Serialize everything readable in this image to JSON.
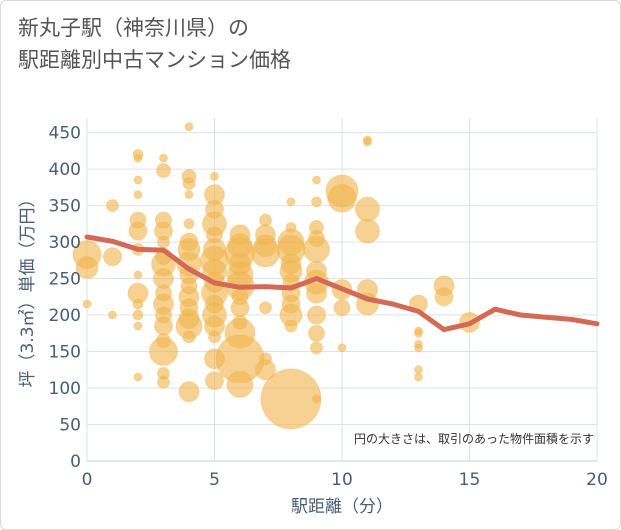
{
  "title_lines": [
    "新丸子駅（神奈川県）の",
    "駅距離別中古マンション価格"
  ],
  "chart_data": {
    "type": "scatter",
    "xlabel": "駅距離（分）",
    "ylabel": "坪（3.3㎡）単価（万円）",
    "xlim": [
      0,
      20
    ],
    "ylim": [
      0,
      470
    ],
    "x_ticks": [
      "0",
      "5",
      "10",
      "15",
      "20"
    ],
    "y_ticks": [
      "0",
      "50",
      "100",
      "150",
      "200",
      "250",
      "300",
      "350",
      "400",
      "450"
    ],
    "annotation": "円の大きさは、取引のあった物件面積を示す",
    "grid": true,
    "colors": {
      "bubble": "#f0b54d",
      "line": "#d46a56",
      "grid": "#dde3ea",
      "plot_bg": "#ffffff"
    },
    "bubbles": [
      {
        "x": 0,
        "y": 283,
        "s": 14
      },
      {
        "x": 0,
        "y": 265,
        "s": 11
      },
      {
        "x": 0,
        "y": 215,
        "s": 4
      },
      {
        "x": 1,
        "y": 350,
        "s": 6
      },
      {
        "x": 1,
        "y": 280,
        "s": 9
      },
      {
        "x": 1,
        "y": 200,
        "s": 4
      },
      {
        "x": 2,
        "y": 420,
        "s": 5
      },
      {
        "x": 2,
        "y": 415,
        "s": 4
      },
      {
        "x": 2,
        "y": 385,
        "s": 4
      },
      {
        "x": 2,
        "y": 365,
        "s": 4
      },
      {
        "x": 2,
        "y": 330,
        "s": 8
      },
      {
        "x": 2,
        "y": 315,
        "s": 9
      },
      {
        "x": 2,
        "y": 290,
        "s": 6
      },
      {
        "x": 2,
        "y": 255,
        "s": 4
      },
      {
        "x": 2,
        "y": 230,
        "s": 10
      },
      {
        "x": 2,
        "y": 215,
        "s": 5
      },
      {
        "x": 2,
        "y": 200,
        "s": 5
      },
      {
        "x": 2,
        "y": 185,
        "s": 4
      },
      {
        "x": 2,
        "y": 115,
        "s": 4
      },
      {
        "x": 3,
        "y": 415,
        "s": 4
      },
      {
        "x": 3,
        "y": 398,
        "s": 7
      },
      {
        "x": 3,
        "y": 330,
        "s": 8
      },
      {
        "x": 3,
        "y": 315,
        "s": 9
      },
      {
        "x": 3,
        "y": 300,
        "s": 6
      },
      {
        "x": 3,
        "y": 280,
        "s": 8
      },
      {
        "x": 3,
        "y": 270,
        "s": 12
      },
      {
        "x": 3,
        "y": 250,
        "s": 10
      },
      {
        "x": 3,
        "y": 230,
        "s": 8
      },
      {
        "x": 3,
        "y": 215,
        "s": 10
      },
      {
        "x": 3,
        "y": 200,
        "s": 8
      },
      {
        "x": 3,
        "y": 185,
        "s": 9
      },
      {
        "x": 3,
        "y": 165,
        "s": 7
      },
      {
        "x": 3,
        "y": 150,
        "s": 14
      },
      {
        "x": 3,
        "y": 120,
        "s": 6
      },
      {
        "x": 3,
        "y": 108,
        "s": 6
      },
      {
        "x": 4,
        "y": 458,
        "s": 4
      },
      {
        "x": 4,
        "y": 390,
        "s": 7
      },
      {
        "x": 4,
        "y": 380,
        "s": 6
      },
      {
        "x": 4,
        "y": 365,
        "s": 4
      },
      {
        "x": 4,
        "y": 325,
        "s": 5
      },
      {
        "x": 4,
        "y": 300,
        "s": 9
      },
      {
        "x": 4,
        "y": 290,
        "s": 11
      },
      {
        "x": 4,
        "y": 270,
        "s": 12
      },
      {
        "x": 4,
        "y": 255,
        "s": 9
      },
      {
        "x": 4,
        "y": 240,
        "s": 8
      },
      {
        "x": 4,
        "y": 225,
        "s": 10
      },
      {
        "x": 4,
        "y": 210,
        "s": 9
      },
      {
        "x": 4,
        "y": 195,
        "s": 10
      },
      {
        "x": 4,
        "y": 185,
        "s": 13
      },
      {
        "x": 4,
        "y": 170,
        "s": 6
      },
      {
        "x": 4,
        "y": 95,
        "s": 10
      },
      {
        "x": 5,
        "y": 390,
        "s": 4
      },
      {
        "x": 5,
        "y": 365,
        "s": 10
      },
      {
        "x": 5,
        "y": 345,
        "s": 9
      },
      {
        "x": 5,
        "y": 325,
        "s": 12
      },
      {
        "x": 5,
        "y": 310,
        "s": 8
      },
      {
        "x": 5,
        "y": 290,
        "s": 11
      },
      {
        "x": 5,
        "y": 275,
        "s": 14
      },
      {
        "x": 5,
        "y": 260,
        "s": 12
      },
      {
        "x": 5,
        "y": 245,
        "s": 10
      },
      {
        "x": 5,
        "y": 230,
        "s": 13
      },
      {
        "x": 5,
        "y": 215,
        "s": 9
      },
      {
        "x": 5,
        "y": 200,
        "s": 12
      },
      {
        "x": 5,
        "y": 185,
        "s": 10
      },
      {
        "x": 5,
        "y": 170,
        "s": 6
      },
      {
        "x": 5,
        "y": 140,
        "s": 10
      },
      {
        "x": 5,
        "y": 110,
        "s": 9
      },
      {
        "x": 6,
        "y": 310,
        "s": 10
      },
      {
        "x": 6,
        "y": 295,
        "s": 12
      },
      {
        "x": 6,
        "y": 285,
        "s": 15
      },
      {
        "x": 6,
        "y": 270,
        "s": 11
      },
      {
        "x": 6,
        "y": 255,
        "s": 13
      },
      {
        "x": 6,
        "y": 240,
        "s": 14
      },
      {
        "x": 6,
        "y": 225,
        "s": 8
      },
      {
        "x": 6,
        "y": 210,
        "s": 9
      },
      {
        "x": 6,
        "y": 190,
        "s": 7
      },
      {
        "x": 6,
        "y": 175,
        "s": 15
      },
      {
        "x": 6,
        "y": 140,
        "s": 24
      },
      {
        "x": 6,
        "y": 105,
        "s": 13
      },
      {
        "x": 7,
        "y": 330,
        "s": 6
      },
      {
        "x": 7,
        "y": 310,
        "s": 10
      },
      {
        "x": 7,
        "y": 295,
        "s": 11
      },
      {
        "x": 7,
        "y": 285,
        "s": 14
      },
      {
        "x": 7,
        "y": 210,
        "s": 6
      },
      {
        "x": 7,
        "y": 140,
        "s": 6
      },
      {
        "x": 7,
        "y": 125,
        "s": 10
      },
      {
        "x": 8,
        "y": 355,
        "s": 4
      },
      {
        "x": 8,
        "y": 320,
        "s": 5
      },
      {
        "x": 8,
        "y": 300,
        "s": 13
      },
      {
        "x": 8,
        "y": 290,
        "s": 14
      },
      {
        "x": 8,
        "y": 270,
        "s": 10
      },
      {
        "x": 8,
        "y": 260,
        "s": 11
      },
      {
        "x": 8,
        "y": 245,
        "s": 8
      },
      {
        "x": 8,
        "y": 230,
        "s": 9
      },
      {
        "x": 8,
        "y": 215,
        "s": 9
      },
      {
        "x": 8,
        "y": 200,
        "s": 11
      },
      {
        "x": 8,
        "y": 185,
        "s": 6
      },
      {
        "x": 8,
        "y": 85,
        "s": 30
      },
      {
        "x": 9,
        "y": 385,
        "s": 4
      },
      {
        "x": 9,
        "y": 355,
        "s": 5
      },
      {
        "x": 9,
        "y": 320,
        "s": 7
      },
      {
        "x": 9,
        "y": 305,
        "s": 8
      },
      {
        "x": 9,
        "y": 290,
        "s": 13
      },
      {
        "x": 9,
        "y": 260,
        "s": 10
      },
      {
        "x": 9,
        "y": 245,
        "s": 12
      },
      {
        "x": 9,
        "y": 230,
        "s": 10
      },
      {
        "x": 9,
        "y": 200,
        "s": 9
      },
      {
        "x": 9,
        "y": 175,
        "s": 8
      },
      {
        "x": 9,
        "y": 155,
        "s": 6
      },
      {
        "x": 9,
        "y": 85,
        "s": 4
      },
      {
        "x": 10,
        "y": 370,
        "s": 16
      },
      {
        "x": 10,
        "y": 360,
        "s": 14
      },
      {
        "x": 10,
        "y": 235,
        "s": 10
      },
      {
        "x": 10,
        "y": 210,
        "s": 8
      },
      {
        "x": 10,
        "y": 155,
        "s": 4
      },
      {
        "x": 11,
        "y": 440,
        "s": 4
      },
      {
        "x": 11,
        "y": 437,
        "s": 4
      },
      {
        "x": 11,
        "y": 345,
        "s": 12
      },
      {
        "x": 11,
        "y": 315,
        "s": 12
      },
      {
        "x": 11,
        "y": 235,
        "s": 10
      },
      {
        "x": 11,
        "y": 215,
        "s": 11
      },
      {
        "x": 13,
        "y": 215,
        "s": 9
      },
      {
        "x": 13,
        "y": 178,
        "s": 4
      },
      {
        "x": 13,
        "y": 175,
        "s": 4
      },
      {
        "x": 13,
        "y": 160,
        "s": 4
      },
      {
        "x": 13,
        "y": 155,
        "s": 4
      },
      {
        "x": 13,
        "y": 125,
        "s": 4
      },
      {
        "x": 13,
        "y": 115,
        "s": 4
      },
      {
        "x": 14,
        "y": 240,
        "s": 10
      },
      {
        "x": 14,
        "y": 225,
        "s": 9
      },
      {
        "x": 15,
        "y": 190,
        "s": 10
      }
    ],
    "series": [
      {
        "type": "line",
        "x": [
          0,
          1,
          2,
          3,
          4,
          5,
          6,
          7,
          8,
          9,
          10,
          11,
          12,
          13,
          14,
          15,
          16,
          17,
          18,
          19,
          20
        ],
        "values": [
          307,
          301,
          290,
          289,
          263,
          244,
          238,
          239,
          237,
          250,
          236,
          222,
          215,
          205,
          180,
          188,
          208,
          200,
          197,
          194,
          188
        ]
      }
    ]
  }
}
